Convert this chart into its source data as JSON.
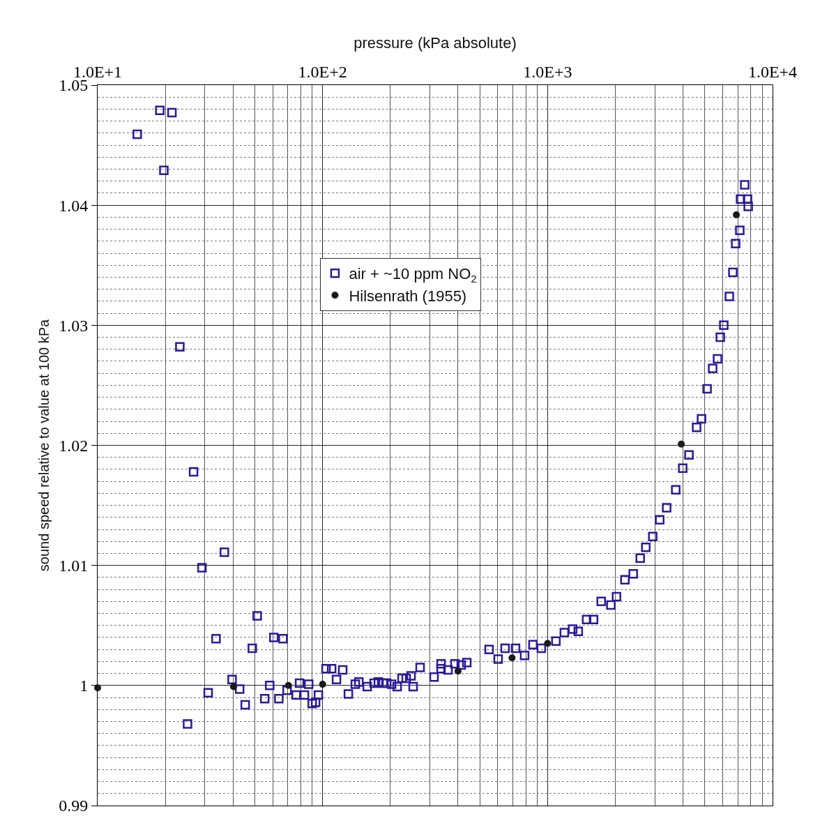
{
  "chart_data": {
    "type": "scatter",
    "xlabel": "pressure (kPa absolute)",
    "ylabel": "sound speed relative to value at 100 kPa",
    "log": "x",
    "grid": true,
    "legend": "top",
    "xlim": [
      10,
      10000
    ],
    "xticks": [
      {
        "value": 10,
        "label": "1.0E+1"
      },
      {
        "value": 100,
        "label": "1.0E+2"
      },
      {
        "value": 1000,
        "label": "1.0E+3"
      },
      {
        "value": 10000,
        "label": "1.0E+4"
      }
    ],
    "ylim": [
      0.99,
      1.05
    ],
    "yticks": [
      0.99,
      1,
      1.01,
      1.02,
      1.03,
      1.04,
      1.05
    ],
    "series": [
      {
        "name": "air + ~10 ppm NO$_{2}$",
        "color": "#2a1a9a",
        "marker": "square",
        "x": [
          15.0,
          18.9,
          21.4,
          19.7,
          23.2,
          26.7,
          29.1,
          36.6,
          25.1,
          31.0,
          33.6,
          39.6,
          42.8,
          45.3,
          48.7,
          51.2,
          55.3,
          58.2,
          60.7,
          63.9,
          66.7,
          69.5,
          76.3,
          79.0,
          83.1,
          86.7,
          89.9,
          93.1,
          95.8,
          103.6,
          109.7,
          115.3,
          122.9,
          130.2,
          139.8,
          144.9,
          157.9,
          169.4,
          176.9,
          185.9,
          192.7,
          202.6,
          214.5,
          225.4,
          235.2,
          247.3,
          252.6,
          271.3,
          312.9,
          336.0,
          336.0,
          360.9,
          387.6,
          413.1,
          437.4,
          549.6,
          603.0,
          647.4,
          720.6,
          790.6,
          861.0,
          937.9,
          1089,
          1187,
          1293,
          1369,
          1491,
          1601,
          1732,
          1912,
          2025,
          2207,
          2403,
          2581,
          2733,
          2935,
          3151,
          3383,
          3713,
          3987,
          4252,
          4598,
          4833,
          5117,
          5417,
          5693,
          5858,
          6071,
          6427,
          6661,
          6855,
          7153,
          7205,
          7739,
          7795,
          7521
        ],
        "values": [
          1.0459,
          1.0479,
          1.0477,
          1.0429,
          1.0282,
          1.0178,
          1.0098,
          1.0111,
          0.9968,
          0.9994,
          1.0039,
          1.0005,
          0.9997,
          0.9984,
          1.0031,
          1.0058,
          0.9989,
          1.0,
          1.004,
          0.9989,
          1.0039,
          0.9996,
          0.9992,
          1.0002,
          0.9992,
          1.0001,
          0.9985,
          0.9986,
          0.9992,
          1.0014,
          1.0014,
          1.0005,
          1.0013,
          0.9993,
          1.0001,
          1.0003,
          0.9999,
          1.0002,
          1.0003,
          1.0002,
          1.0002,
          1.0001,
          0.9999,
          1.0006,
          1.0006,
          1.0008,
          0.9999,
          1.0015,
          1.0007,
          1.0018,
          1.0014,
          1.0013,
          1.0018,
          1.0017,
          1.0019,
          1.003,
          1.0022,
          1.0031,
          1.0031,
          1.0025,
          1.0034,
          1.0031,
          1.0037,
          1.0044,
          1.0047,
          1.0045,
          1.0055,
          1.0055,
          1.007,
          1.0067,
          1.0074,
          1.0088,
          1.0093,
          1.0106,
          1.0115,
          1.0124,
          1.0138,
          1.0148,
          1.0163,
          1.0181,
          1.0192,
          1.0215,
          1.0222,
          1.0247,
          1.0264,
          1.0272,
          1.029,
          1.03,
          1.0324,
          1.0344,
          1.0368,
          1.0379,
          1.0405,
          1.0405,
          1.0399,
          1.0417
        ]
      },
      {
        "name": "Hilsenrath (1955)",
        "color": "#1a1a1a",
        "marker": "circle",
        "x": [
          10,
          40.2,
          70.5,
          100,
          400,
          695,
          1000,
          3930,
          6902
        ],
        "values": [
          0.9998,
          0.9999,
          1.0,
          1.0001,
          1.0012,
          1.0023,
          1.0035,
          1.0201,
          1.0392
        ]
      }
    ]
  }
}
